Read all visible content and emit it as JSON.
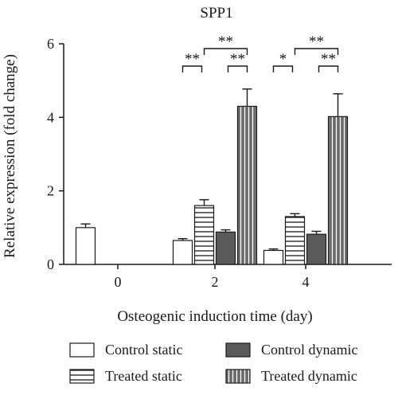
{
  "chart_data": {
    "type": "bar",
    "title": "SPP1",
    "xlabel": "Osteogenic induction time (day)",
    "ylabel": "Relative expression (fold change)",
    "ylim": [
      0,
      6
    ],
    "yticks": [
      "0",
      "2",
      "4",
      "6"
    ],
    "categories": [
      "0",
      "2",
      "4"
    ],
    "series": [
      {
        "name": "Control static",
        "pattern": "open",
        "values": [
          1.0,
          0.65,
          0.38
        ],
        "errors": [
          0.1,
          0.05,
          0.04
        ]
      },
      {
        "name": "Treated static",
        "pattern": "horizontal",
        "values": [
          null,
          1.6,
          1.3
        ],
        "errors": [
          null,
          0.16,
          0.08
        ]
      },
      {
        "name": "Control dynamic",
        "pattern": "filled",
        "values": [
          null,
          0.88,
          0.82
        ],
        "errors": [
          null,
          0.06,
          0.08
        ]
      },
      {
        "name": "Treated dynamic",
        "pattern": "vertical",
        "values": [
          null,
          4.3,
          4.02
        ],
        "errors": [
          null,
          0.47,
          0.62
        ]
      }
    ],
    "significance": [
      {
        "category": "2",
        "pairs": [
          [
            "Control static",
            "Treated static",
            "**"
          ],
          [
            "Treated static",
            "Treated dynamic",
            "**"
          ],
          [
            "Control dynamic",
            "Treated dynamic",
            "**"
          ]
        ]
      },
      {
        "category": "4",
        "pairs": [
          [
            "Control static",
            "Treated static",
            "*"
          ],
          [
            "Treated static",
            "Treated dynamic",
            "**"
          ],
          [
            "Control dynamic",
            "Treated dynamic",
            "**"
          ]
        ]
      }
    ],
    "legend_position": "bottom",
    "colors": {
      "ink": "#1a1a1a",
      "filled": "#5a5a5a",
      "hatch_fill": "#6a6a6a"
    }
  }
}
